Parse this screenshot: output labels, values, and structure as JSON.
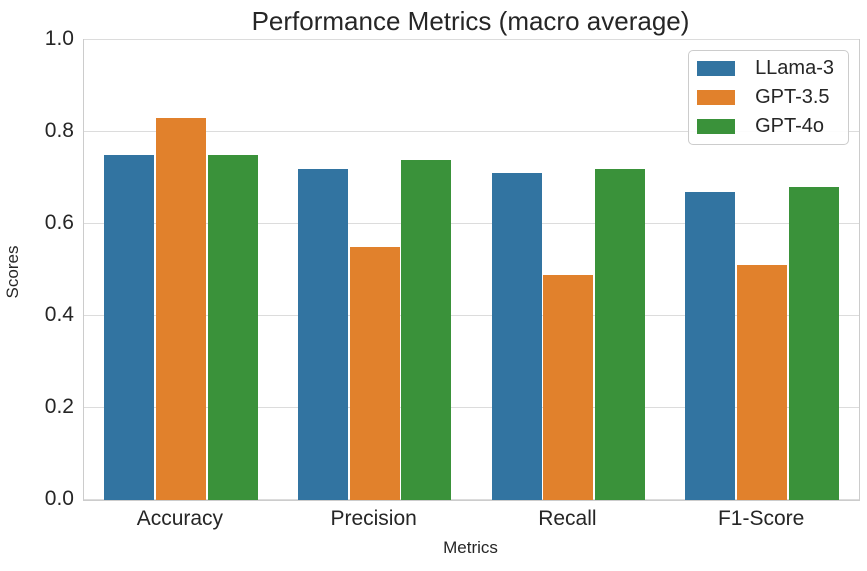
{
  "figure": {
    "background": "#ffffff",
    "text_color": "#262626",
    "grid_color": "#dcdcdc",
    "spine_color": "#cccccc"
  },
  "chart_data": {
    "type": "bar",
    "title": "Performance Metrics (macro average)",
    "xlabel": "Metrics",
    "ylabel": "Scores",
    "categories": [
      "Accuracy",
      "Precision",
      "Recall",
      "F1-Score"
    ],
    "series": [
      {
        "name": "LLama-3",
        "color": "#3274a1",
        "values": [
          0.75,
          0.72,
          0.71,
          0.67
        ]
      },
      {
        "name": "GPT-3.5",
        "color": "#e1812c",
        "values": [
          0.83,
          0.55,
          0.49,
          0.51
        ]
      },
      {
        "name": "GPT-4o",
        "color": "#3a923a",
        "values": [
          0.75,
          0.74,
          0.72,
          0.68
        ]
      }
    ],
    "ylim": [
      0.0,
      1.0
    ],
    "yticks": [
      0.0,
      0.2,
      0.4,
      0.6,
      0.8,
      1.0
    ],
    "ytick_labels": [
      "0.0",
      "0.2",
      "0.4",
      "0.6",
      "0.8",
      "1.0"
    ],
    "grid": true,
    "legend_position": "upper right",
    "bar_group_fraction": 0.8
  }
}
